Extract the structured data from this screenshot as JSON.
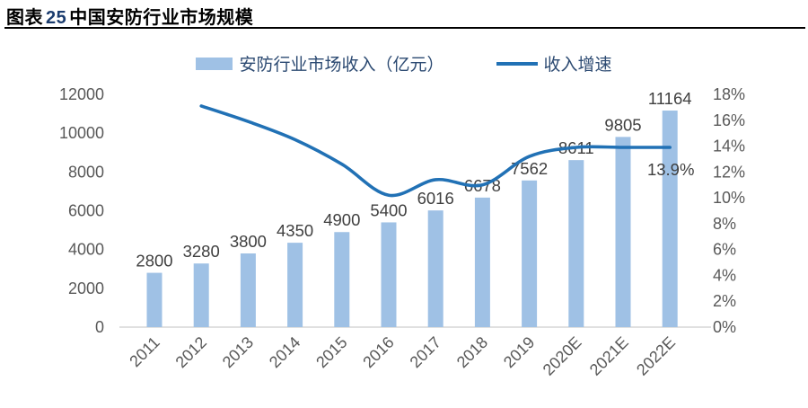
{
  "header": {
    "title_prefix": "图表",
    "title_number": "25",
    "title_rest": "中国安防行业市场规模"
  },
  "legend": {
    "bars": "安防行业市场收入（亿元）",
    "line": "收入增速"
  },
  "chart_data": {
    "type": "bar",
    "title": "中国安防行业市场规模",
    "categories": [
      "2011",
      "2012",
      "2013",
      "2014",
      "2015",
      "2016",
      "2017",
      "2018",
      "2019",
      "2020E",
      "2021E",
      "2022E"
    ],
    "series": [
      {
        "name": "安防行业市场收入（亿元）",
        "type": "bar",
        "axis": "left",
        "values": [
          2800,
          3280,
          3800,
          4350,
          4900,
          5400,
          6016,
          6678,
          7562,
          8611,
          9805,
          11164
        ],
        "labels": [
          "2800",
          "3280",
          "3800",
          "4350",
          "4900",
          "5400",
          "6016",
          "6678",
          "7562",
          "8611",
          "9805",
          "11164"
        ]
      },
      {
        "name": "收入增速",
        "type": "line",
        "axis": "right",
        "values_pct": [
          null,
          17.1,
          15.9,
          14.5,
          12.6,
          10.2,
          11.4,
          11.0,
          13.2,
          13.9,
          13.9,
          13.9
        ]
      }
    ],
    "left_axis": {
      "min": 0,
      "max": 12000,
      "step": 2000,
      "ticks": [
        "0",
        "2000",
        "4000",
        "6000",
        "8000",
        "10000",
        "12000"
      ]
    },
    "right_axis": {
      "min": 0,
      "max": 18,
      "step": 2,
      "ticks": [
        "0%",
        "2%",
        "4%",
        "6%",
        "8%",
        "10%",
        "12%",
        "14%",
        "16%",
        "18%"
      ]
    },
    "annotation": {
      "text": "13.9%"
    },
    "legend_position": "top",
    "grid": false,
    "colors": {
      "bar": "#9FC1E5",
      "line": "#2171B5",
      "tick_text": "#595959",
      "data_label": "#3F3F3F",
      "axis_line": "#D6D6D6",
      "legend_text": "#2c4a72",
      "title_number": "#1b3c6e"
    }
  }
}
